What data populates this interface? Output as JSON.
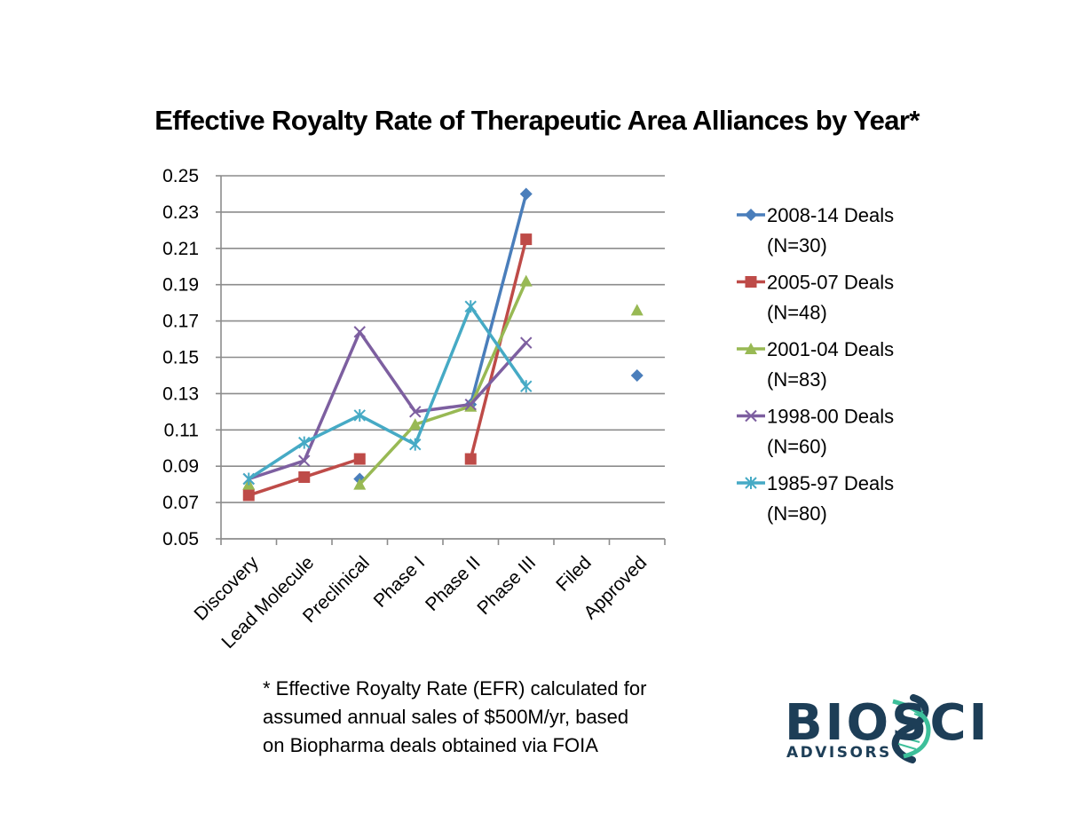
{
  "chart_data": {
    "type": "line",
    "title": "Effective Royalty Rate of Therapeutic Area Alliances by Year*",
    "xlabel": "",
    "ylabel": "",
    "ylim": [
      0.05,
      0.25
    ],
    "yticks": [
      "0.25",
      "0.23",
      "0.21",
      "0.19",
      "0.17",
      "0.15",
      "0.13",
      "0.11",
      "0.09",
      "0.07",
      "0.05"
    ],
    "grid": true,
    "legend_position": "right",
    "categories": [
      "Discovery",
      "Lead Molecule",
      "Preclinical",
      "Phase I",
      "Phase II",
      "Phase III",
      "Filed",
      "Approved"
    ],
    "series": [
      {
        "name": "2008-14 Deals",
        "n_label": "(N=30)",
        "color": "#4a7ebb",
        "marker": "diamond",
        "values": [
          null,
          null,
          0.083,
          null,
          0.124,
          0.24,
          null,
          0.14
        ]
      },
      {
        "name": "2005-07 Deals",
        "n_label": "(N=48)",
        "color": "#be4b48",
        "marker": "square",
        "values": [
          0.074,
          0.084,
          0.094,
          null,
          0.094,
          0.215,
          null,
          null
        ]
      },
      {
        "name": "2001-04 Deals",
        "n_label": "(N=83)",
        "color": "#98b954",
        "marker": "triangle",
        "values": [
          0.08,
          null,
          0.08,
          0.113,
          0.123,
          0.192,
          null,
          0.176
        ]
      },
      {
        "name": "1998-00 Deals",
        "n_label": "(N=60)",
        "color": "#7d5fa0",
        "marker": "x",
        "values": [
          0.083,
          0.093,
          0.164,
          0.12,
          0.124,
          0.158,
          null,
          null
        ]
      },
      {
        "name": "1985-97 Deals",
        "n_label": "(N=80)",
        "color": "#46aac5",
        "marker": "star",
        "values": [
          0.083,
          0.103,
          0.118,
          0.102,
          0.178,
          0.134,
          null,
          null
        ]
      }
    ]
  },
  "footnote": {
    "lines": [
      "* Effective Royalty Rate (EFR) calculated for",
      "assumed annual sales of $500M/yr, based",
      "on Biopharma deals obtained via FOIA"
    ]
  },
  "logo": {
    "main": "BIOSCI",
    "sub": "ADVISORS",
    "colors": {
      "text": "#1d3e57",
      "helix": "#3dbf9a"
    }
  }
}
